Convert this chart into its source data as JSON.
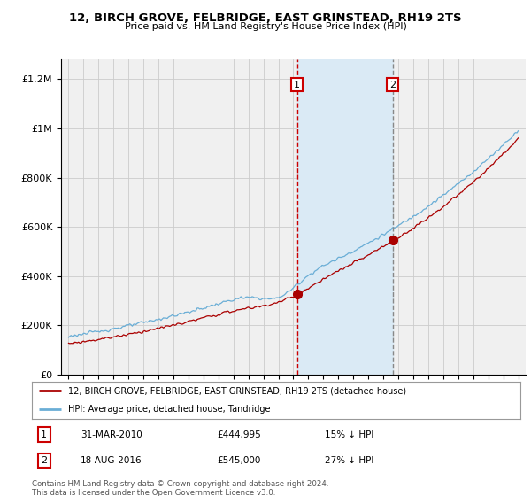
{
  "title": "12, BIRCH GROVE, FELBRIDGE, EAST GRINSTEAD, RH19 2TS",
  "subtitle": "Price paid vs. HM Land Registry's House Price Index (HPI)",
  "hpi_label": "HPI: Average price, detached house, Tandridge",
  "property_label": "12, BIRCH GROVE, FELBRIDGE, EAST GRINSTEAD, RH19 2TS (detached house)",
  "footer": "Contains HM Land Registry data © Crown copyright and database right 2024.\nThis data is licensed under the Open Government Licence v3.0.",
  "transaction1": {
    "num": "1",
    "date": "31-MAR-2010",
    "price": "£444,995",
    "pct": "15% ↓ HPI"
  },
  "transaction2": {
    "num": "2",
    "date": "18-AUG-2016",
    "price": "£545,000",
    "pct": "27% ↓ HPI"
  },
  "vline1_x": 2010.25,
  "vline2_x": 2016.63,
  "point1_property_y": 444995,
  "point2_property_y": 545000,
  "ylim": [
    0,
    1280000
  ],
  "xlim": [
    1994.5,
    2025.5
  ],
  "hpi_color": "#6aaed6",
  "property_color": "#aa0000",
  "vline1_color": "#cc0000",
  "vline2_color": "#888888",
  "shade_color": "#daeaf5",
  "grid_color": "#cccccc",
  "bg_color": "#f0f0f0",
  "label_box_color": "#cc0000"
}
